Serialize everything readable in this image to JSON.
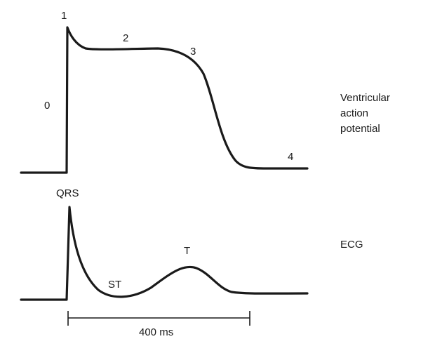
{
  "action_potential": {
    "phase_labels": [
      "0",
      "1",
      "2",
      "3",
      "4"
    ],
    "title_lines": [
      "Ventricular",
      "action",
      "potential"
    ]
  },
  "ecg": {
    "labels": {
      "qrs": "QRS",
      "st": "ST",
      "t": "T"
    },
    "title": "ECG"
  },
  "time_scale": {
    "label": "400 ms"
  }
}
